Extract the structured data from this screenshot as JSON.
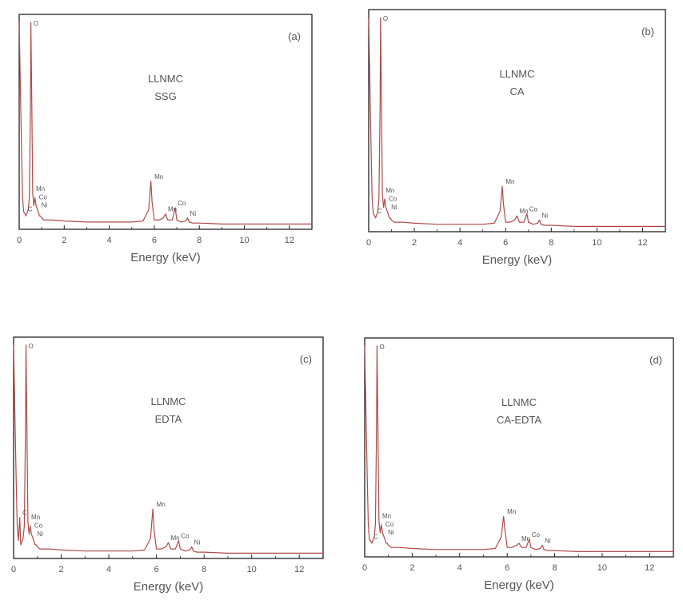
{
  "chart_data": [
    {
      "type": "line",
      "panel": "(a)",
      "title_lines": [
        "LLNMC",
        "SSG"
      ],
      "xlabel": "Energy (keV)",
      "xlim": [
        0,
        13
      ],
      "xticks": [
        0,
        2,
        4,
        6,
        8,
        10,
        12
      ],
      "ylim": [
        0,
        100
      ],
      "color": "#b04a4a",
      "series": [
        {
          "x": [
            0,
            0.1,
            0.15,
            0.2,
            0.26,
            0.3,
            0.4,
            0.45,
            0.5,
            0.52,
            0.55,
            0.6,
            0.65,
            0.7,
            0.75,
            0.85,
            0.9,
            0.95,
            1.0,
            1.1,
            1.3,
            1.5,
            2.0,
            3.0,
            4.0,
            5.0,
            5.5,
            5.75,
            5.85,
            5.9,
            6.0,
            6.2,
            6.4,
            6.5,
            6.6,
            6.8,
            6.93,
            7.0,
            7.2,
            7.4,
            7.48,
            7.55,
            7.7,
            8.0,
            9.0,
            10.0,
            11.0,
            12.0,
            13.0
          ],
          "y": [
            100,
            40,
            14,
            7,
            6,
            5,
            8,
            14,
            60,
            100,
            70,
            16,
            10,
            14,
            10,
            7,
            5,
            5,
            4,
            3,
            3,
            3,
            2.5,
            2,
            2,
            2,
            2.5,
            8,
            22,
            12,
            3,
            3,
            4,
            6,
            3,
            3,
            9,
            3,
            2,
            2.5,
            4,
            2,
            1.5,
            1.5,
            1,
            1,
            1,
            1,
            1
          ]
        }
      ],
      "annotations": [
        {
          "text": "O",
          "x": 0.52,
          "y": 100
        },
        {
          "text": "Mn",
          "x": 5.9,
          "y": 22
        },
        {
          "text": "Co",
          "x": 6.93,
          "y": 9
        },
        {
          "text": "Mn",
          "x": 6.5,
          "y": 6
        },
        {
          "text": "Ni",
          "x": 7.48,
          "y": 4
        },
        {
          "text": "Mn",
          "x": 0.64,
          "y": 16
        },
        {
          "text": "Co",
          "x": 0.77,
          "y": 12
        },
        {
          "text": "Ni",
          "x": 0.88,
          "y": 8
        },
        {
          "text": "C",
          "x": 0.27,
          "y": 6
        }
      ]
    },
    {
      "type": "line",
      "panel": "(b)",
      "title_lines": [
        "LLNMC",
        "CA"
      ],
      "xlabel": "Energy (keV)",
      "xlim": [
        0,
        13
      ],
      "xticks": [
        0,
        2,
        4,
        6,
        8,
        10,
        12
      ],
      "ylim": [
        0,
        100
      ],
      "color": "#b04a4a",
      "series": [
        {
          "x": [
            0,
            0.1,
            0.15,
            0.2,
            0.26,
            0.3,
            0.4,
            0.45,
            0.5,
            0.52,
            0.55,
            0.6,
            0.65,
            0.7,
            0.75,
            0.85,
            0.9,
            0.95,
            1.0,
            1.1,
            1.3,
            1.5,
            2.0,
            3.0,
            4.0,
            5.0,
            5.5,
            5.75,
            5.85,
            5.9,
            6.0,
            6.2,
            6.4,
            6.5,
            6.6,
            6.8,
            6.93,
            7.0,
            7.2,
            7.4,
            7.48,
            7.55,
            7.7,
            8.0,
            9.0,
            10.0,
            11.0,
            12.0,
            13.0
          ],
          "y": [
            100,
            40,
            14,
            7,
            6,
            5,
            8,
            14,
            60,
            100,
            70,
            16,
            10,
            14,
            10,
            7,
            5,
            5,
            4,
            3,
            3,
            3,
            2.5,
            2,
            2,
            2,
            2.5,
            8,
            20,
            12,
            3,
            3,
            4,
            6,
            3,
            3,
            7,
            3,
            2,
            2.5,
            4,
            2,
            1.5,
            1.5,
            1,
            1,
            1,
            1,
            1
          ]
        }
      ],
      "annotations": [
        {
          "text": "O",
          "x": 0.52,
          "y": 100
        },
        {
          "text": "Mn",
          "x": 5.9,
          "y": 20
        },
        {
          "text": "Co",
          "x": 6.93,
          "y": 7
        },
        {
          "text": "Mn",
          "x": 6.5,
          "y": 6
        },
        {
          "text": "Ni",
          "x": 7.48,
          "y": 4
        },
        {
          "text": "Mn",
          "x": 0.64,
          "y": 16
        },
        {
          "text": "Co",
          "x": 0.77,
          "y": 12
        },
        {
          "text": "Ni",
          "x": 0.88,
          "y": 8
        },
        {
          "text": "C",
          "x": 0.27,
          "y": 6
        }
      ]
    },
    {
      "type": "line",
      "panel": "(c)",
      "title_lines": [
        "LLNMC",
        "EDTA"
      ],
      "xlabel": "Energy (keV)",
      "xlim": [
        0,
        13
      ],
      "xticks": [
        0,
        2,
        4,
        6,
        8,
        10,
        12
      ],
      "ylim": [
        0,
        100
      ],
      "color": "#b04a4a",
      "series": [
        {
          "x": [
            0,
            0.1,
            0.15,
            0.2,
            0.26,
            0.3,
            0.4,
            0.45,
            0.5,
            0.52,
            0.55,
            0.6,
            0.65,
            0.7,
            0.75,
            0.85,
            0.9,
            0.95,
            1.0,
            1.1,
            1.3,
            1.5,
            2.0,
            3.0,
            4.0,
            5.0,
            5.5,
            5.75,
            5.85,
            5.9,
            6.0,
            6.2,
            6.4,
            6.5,
            6.6,
            6.8,
            6.93,
            7.0,
            7.2,
            7.4,
            7.48,
            7.55,
            7.7,
            8.0,
            9.0,
            10.0,
            11.0,
            12.0,
            13.0
          ],
          "y": [
            100,
            40,
            14,
            7,
            18,
            5,
            8,
            14,
            60,
            100,
            70,
            16,
            10,
            14,
            10,
            7,
            5,
            5,
            4,
            3,
            3,
            3,
            2.5,
            2,
            2,
            2,
            2.5,
            8,
            22,
            12,
            3,
            3,
            4,
            6,
            3,
            3,
            7,
            3,
            2,
            2.5,
            4,
            2,
            1.5,
            1.5,
            1,
            1,
            1,
            1,
            1
          ]
        }
      ],
      "annotations": [
        {
          "text": "O",
          "x": 0.52,
          "y": 100
        },
        {
          "text": "Mn",
          "x": 5.9,
          "y": 22
        },
        {
          "text": "Co",
          "x": 6.93,
          "y": 7
        },
        {
          "text": "Mn",
          "x": 6.5,
          "y": 6
        },
        {
          "text": "Ni",
          "x": 7.48,
          "y": 4
        },
        {
          "text": "Mn",
          "x": 0.64,
          "y": 16
        },
        {
          "text": "Co",
          "x": 0.77,
          "y": 12
        },
        {
          "text": "Ni",
          "x": 0.88,
          "y": 8
        },
        {
          "text": "C",
          "x": 0.27,
          "y": 18
        }
      ]
    },
    {
      "type": "line",
      "panel": "(d)",
      "title_lines": [
        "LLNMC",
        "CA-EDTA"
      ],
      "xlabel": "Energy (keV)",
      "xlim": [
        0,
        13
      ],
      "xticks": [
        0,
        2,
        4,
        6,
        8,
        10,
        12
      ],
      "ylim": [
        0,
        100
      ],
      "color": "#b04a4a",
      "series": [
        {
          "x": [
            0,
            0.1,
            0.15,
            0.2,
            0.26,
            0.3,
            0.4,
            0.45,
            0.5,
            0.52,
            0.55,
            0.6,
            0.65,
            0.7,
            0.75,
            0.85,
            0.9,
            0.95,
            1.0,
            1.1,
            1.3,
            1.5,
            2.0,
            3.0,
            4.0,
            5.0,
            5.5,
            5.75,
            5.85,
            5.9,
            6.0,
            6.2,
            6.4,
            6.5,
            6.6,
            6.8,
            6.93,
            7.0,
            7.2,
            7.4,
            7.48,
            7.55,
            7.7,
            8.0,
            9.0,
            10.0,
            11.0,
            12.0,
            13.0
          ],
          "y": [
            100,
            40,
            14,
            7,
            6,
            5,
            8,
            14,
            60,
            100,
            70,
            16,
            10,
            14,
            10,
            7,
            5,
            5,
            4,
            3,
            3,
            3,
            2.5,
            2,
            2,
            2,
            2.5,
            8,
            18,
            12,
            3,
            3,
            4,
            5,
            3,
            3,
            7,
            3,
            2,
            2.5,
            4,
            2,
            1.5,
            1.5,
            1,
            1,
            1,
            1,
            1
          ]
        }
      ],
      "annotations": [
        {
          "text": "O",
          "x": 0.52,
          "y": 100
        },
        {
          "text": "Mn",
          "x": 5.9,
          "y": 18
        },
        {
          "text": "Co",
          "x": 6.93,
          "y": 7
        },
        {
          "text": "Mn",
          "x": 6.5,
          "y": 5
        },
        {
          "text": "Ni",
          "x": 7.48,
          "y": 4
        },
        {
          "text": "Mn",
          "x": 0.64,
          "y": 16
        },
        {
          "text": "Co",
          "x": 0.77,
          "y": 12
        },
        {
          "text": "Ni",
          "x": 0.88,
          "y": 8
        },
        {
          "text": "C",
          "x": 0.27,
          "y": 6
        }
      ]
    }
  ]
}
